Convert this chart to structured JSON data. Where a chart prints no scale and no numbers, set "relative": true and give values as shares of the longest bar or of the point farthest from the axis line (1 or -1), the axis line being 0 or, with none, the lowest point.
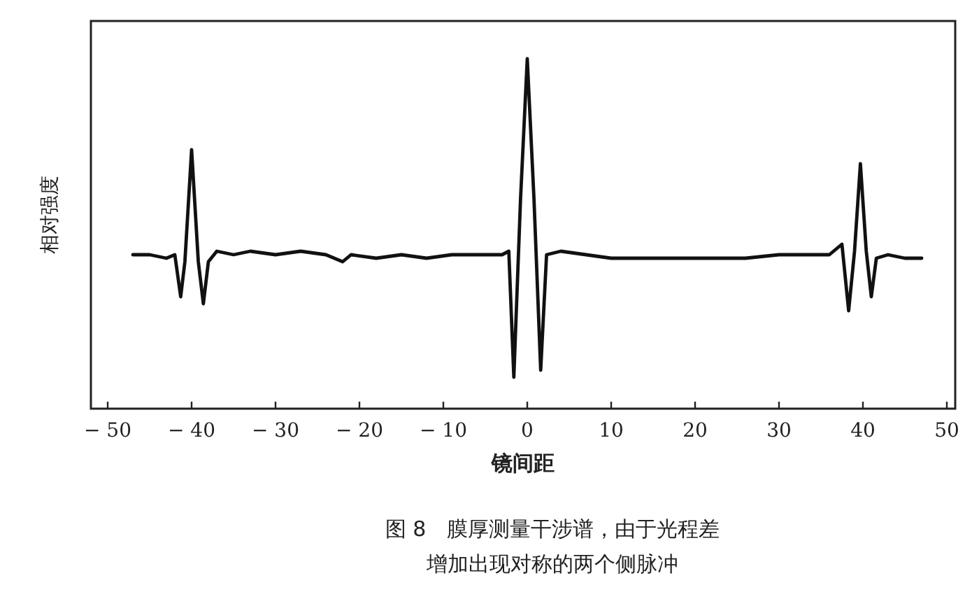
{
  "chart_data": {
    "type": "line",
    "relative": true,
    "xlabel": "镜间距",
    "ylabel": "相对强度",
    "xlim": [
      -52,
      51
    ],
    "xticks": [
      -50,
      -40,
      -30,
      -20,
      -10,
      0,
      10,
      20,
      30,
      40,
      50
    ],
    "annotations": [
      "图 8　膜厚测量干涉谱，由于光程差",
      "增加出现对称的两个侧脉冲"
    ],
    "series": [
      {
        "color": "#111111",
        "x": [
          -47,
          -45,
          -43,
          -42,
          -41.3,
          -40.8,
          -40,
          -39.2,
          -38.6,
          -38,
          -37,
          -35,
          -33,
          -30,
          -27,
          -24,
          -22,
          -21,
          -18,
          -15,
          -12,
          -9,
          -6,
          -3,
          -2.2,
          -1.6,
          -0.8,
          0,
          0.8,
          1.6,
          2.3,
          4,
          7,
          10,
          14,
          18,
          22,
          26,
          30,
          33,
          36,
          37.5,
          38.3,
          39,
          39.7,
          40.4,
          41,
          41.6,
          43,
          45,
          47
        ],
        "values": [
          0.44,
          0.44,
          0.43,
          0.44,
          0.32,
          0.42,
          0.74,
          0.42,
          0.3,
          0.42,
          0.45,
          0.44,
          0.45,
          0.44,
          0.45,
          0.44,
          0.42,
          0.44,
          0.43,
          0.44,
          0.43,
          0.44,
          0.44,
          0.44,
          0.45,
          0.09,
          0.6,
          1.0,
          0.6,
          0.11,
          0.44,
          0.45,
          0.44,
          0.43,
          0.43,
          0.43,
          0.43,
          0.43,
          0.44,
          0.44,
          0.44,
          0.47,
          0.28,
          0.45,
          0.7,
          0.45,
          0.32,
          0.43,
          0.44,
          0.43,
          0.43
        ]
      }
    ]
  }
}
